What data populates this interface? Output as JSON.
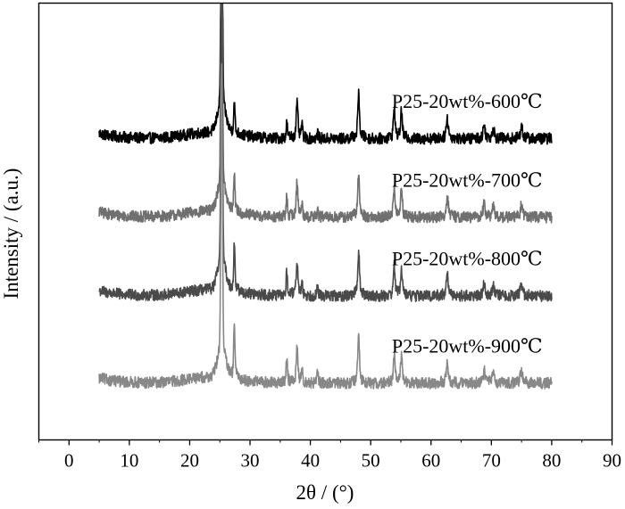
{
  "chart_data": {
    "type": "line",
    "title": "",
    "xlabel": "2θ / (°)",
    "ylabel": "Intensity / (a.u.)",
    "xlim": [
      -5,
      90
    ],
    "ylim": [
      0,
      100
    ],
    "xticks": [
      0,
      10,
      20,
      30,
      40,
      50,
      60,
      70,
      80,
      90
    ],
    "yticks_shown": false,
    "grid": false,
    "legend": "labels placed beside each curve",
    "x_range": [
      5,
      80
    ],
    "peaks": [
      {
        "x": 25.3,
        "h": 64,
        "w": 0.18
      },
      {
        "x": 27.4,
        "h": 7,
        "w": 0.15
      },
      {
        "x": 36.1,
        "h": 3.5,
        "w": 0.15
      },
      {
        "x": 37.8,
        "h": 7,
        "w": 0.2
      },
      {
        "x": 38.6,
        "h": 2.5,
        "w": 0.15
      },
      {
        "x": 41.2,
        "h": 1.2,
        "w": 0.15
      },
      {
        "x": 48.0,
        "h": 9,
        "w": 0.2
      },
      {
        "x": 53.9,
        "h": 6,
        "w": 0.2
      },
      {
        "x": 55.1,
        "h": 5.5,
        "w": 0.2
      },
      {
        "x": 62.7,
        "h": 4,
        "w": 0.25
      },
      {
        "x": 68.8,
        "h": 2.5,
        "w": 0.25
      },
      {
        "x": 70.3,
        "h": 2.0,
        "w": 0.25
      },
      {
        "x": 75.0,
        "h": 2.5,
        "w": 0.25
      }
    ],
    "series": [
      {
        "name": "P25-20wt%-600℃",
        "color": "#000000",
        "offset": 69,
        "rutile_scale": 0.9,
        "noise": 1.3
      },
      {
        "name": "P25-20wt%-700℃",
        "color": "#707070",
        "offset": 51,
        "rutile_scale": 1.2,
        "noise": 1.3
      },
      {
        "name": "P25-20wt%-800℃",
        "color": "#4a4a4a",
        "offset": 33,
        "rutile_scale": 1.4,
        "noise": 1.3
      },
      {
        "name": "P25-20wt%-900℃",
        "color": "#888888",
        "offset": 13,
        "rutile_scale": 1.6,
        "noise": 1.3
      }
    ]
  }
}
